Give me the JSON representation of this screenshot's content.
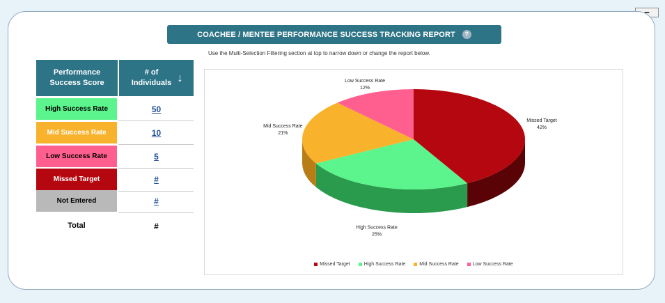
{
  "window": {
    "collapse_label": "−"
  },
  "report": {
    "title": "COACHEE / MENTEE PERFORMANCE SUCCESS TRACKING REPORT",
    "help_glyph": "?",
    "instruction": "Use the Multi-Selection Filtering section at top to narrow down or change the report below."
  },
  "table": {
    "header_category": "Performance Success Score",
    "header_count": "# of Individuals",
    "sort_glyph": "↓",
    "rows": [
      {
        "label": "High Success Rate",
        "count": "50",
        "bg": "#5cf58d",
        "fg": "#000000"
      },
      {
        "label": "Mid Success Rate",
        "count": "10",
        "bg": "#f9b22c",
        "fg": "#ffffff"
      },
      {
        "label": "Low Success Rate",
        "count": "5",
        "bg": "#ff5f8f",
        "fg": "#000000"
      },
      {
        "label": "Missed Target",
        "count": "#",
        "bg": "#b5070f",
        "fg": "#ffffff"
      },
      {
        "label": "Not Entered",
        "count": "#",
        "bg": "#b9b9b9",
        "fg": "#000000"
      }
    ],
    "total_label": "Total",
    "total_value": "#"
  },
  "chart_data": {
    "type": "pie",
    "title": "",
    "labels": [
      "Missed Target",
      "High Success Rate",
      "Mid Success Rate",
      "Low Success Rate"
    ],
    "values": [
      42,
      25,
      21,
      12
    ],
    "value_labels": [
      "42%",
      "25%",
      "21%",
      "12%"
    ],
    "colors": [
      "#b5070f",
      "#5cf58d",
      "#f9b22c",
      "#ff5f8f"
    ],
    "side_colors": [
      "#5a0306",
      "#2a9a4c",
      "#b87d15",
      "#b8305a"
    ],
    "legend_position": "bottom"
  }
}
